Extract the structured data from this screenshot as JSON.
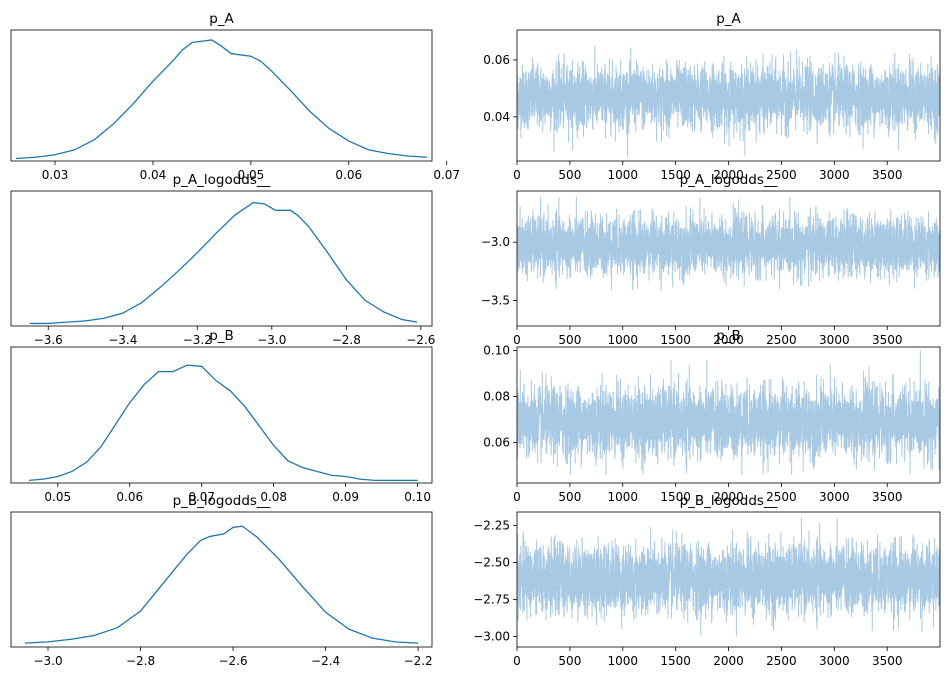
{
  "colors": {
    "kde_line": "#1f77b4",
    "trace_line": "#a8c9e3",
    "axes": "#000000",
    "background": "#ffffff"
  },
  "chart_data": [
    {
      "type": "line",
      "id": "kde-p_A",
      "title": "p_A",
      "xlim": [
        0.0255,
        0.0685
      ],
      "ylim": [
        0,
        1.05
      ],
      "xticks": [
        0.03,
        0.04,
        0.05,
        0.06,
        0.07
      ],
      "xticklabels": [
        "0.03",
        "0.04",
        "0.05",
        "0.06",
        "0.07"
      ],
      "yticks": [],
      "x": [
        0.026,
        0.028,
        0.03,
        0.032,
        0.034,
        0.036,
        0.038,
        0.04,
        0.042,
        0.043,
        0.044,
        0.046,
        0.047,
        0.048,
        0.05,
        0.051,
        0.052,
        0.054,
        0.056,
        0.058,
        0.06,
        0.062,
        0.064,
        0.066,
        0.068
      ],
      "y": [
        0.02,
        0.03,
        0.05,
        0.09,
        0.17,
        0.3,
        0.46,
        0.64,
        0.8,
        0.89,
        0.95,
        0.97,
        0.92,
        0.86,
        0.84,
        0.8,
        0.73,
        0.57,
        0.4,
        0.26,
        0.16,
        0.09,
        0.06,
        0.04,
        0.03
      ]
    },
    {
      "type": "line",
      "id": "trace-p_A",
      "title": "p_A",
      "xlim": [
        0,
        3999
      ],
      "ylim": [
        0.0245,
        0.0705
      ],
      "xticks": [
        0,
        500,
        1000,
        1500,
        2000,
        2500,
        3000,
        3500
      ],
      "xticklabels": [
        "0",
        "500",
        "1000",
        "1500",
        "2000",
        "2500",
        "3000",
        "3500"
      ],
      "yticks": [
        0.04,
        0.06
      ],
      "yticklabels": [
        "0.04",
        "0.06"
      ],
      "n_draws": 4000,
      "mean": 0.047,
      "sd": 0.0055,
      "min": 0.026,
      "max": 0.068
    },
    {
      "type": "line",
      "id": "kde-p_A_logodds__",
      "title": "p_A_logodds__",
      "xlim": [
        -3.7,
        -2.57
      ],
      "ylim": [
        0,
        1.05
      ],
      "xticks": [
        -3.6,
        -3.4,
        -3.2,
        -3.0,
        -2.8,
        -2.6
      ],
      "xticklabels": [
        "−3.6",
        "−3.4",
        "−3.2",
        "−3.0",
        "−2.8",
        "−2.6"
      ],
      "yticks": [],
      "x": [
        -3.65,
        -3.6,
        -3.55,
        -3.5,
        -3.45,
        -3.4,
        -3.35,
        -3.3,
        -3.25,
        -3.2,
        -3.15,
        -3.1,
        -3.05,
        -3.02,
        -2.99,
        -2.95,
        -2.93,
        -2.9,
        -2.85,
        -2.8,
        -2.75,
        -2.7,
        -2.65,
        -2.61
      ],
      "y": [
        0.02,
        0.02,
        0.03,
        0.04,
        0.06,
        0.1,
        0.18,
        0.3,
        0.43,
        0.57,
        0.72,
        0.86,
        0.96,
        0.95,
        0.9,
        0.9,
        0.86,
        0.77,
        0.57,
        0.36,
        0.2,
        0.11,
        0.05,
        0.03
      ]
    },
    {
      "type": "line",
      "id": "trace-p_A_logodds__",
      "title": "p_A_logodds__",
      "xlim": [
        0,
        3999
      ],
      "ylim": [
        -3.72,
        -2.56
      ],
      "xticks": [
        0,
        500,
        1000,
        1500,
        2000,
        2500,
        3000,
        3500
      ],
      "xticklabels": [
        "0",
        "500",
        "1000",
        "1500",
        "2000",
        "2500",
        "3000",
        "3500"
      ],
      "yticks": [
        -3.5,
        -3.0
      ],
      "yticklabels": [
        "−3.5",
        "−3.0"
      ],
      "n_draws": 4000,
      "mean": -3.03,
      "sd": 0.125,
      "min": -3.65,
      "max": -2.61
    },
    {
      "type": "line",
      "id": "kde-p_B",
      "title": "p_B",
      "xlim": [
        0.0435,
        0.102
      ],
      "ylim": [
        0,
        1.05
      ],
      "xticks": [
        0.05,
        0.06,
        0.07,
        0.08,
        0.09,
        0.1
      ],
      "xticklabels": [
        "0.05",
        "0.06",
        "0.07",
        "0.08",
        "0.09",
        "0.10"
      ],
      "yticks": [],
      "x": [
        0.046,
        0.048,
        0.05,
        0.052,
        0.054,
        0.056,
        0.058,
        0.06,
        0.062,
        0.064,
        0.066,
        0.068,
        0.07,
        0.072,
        0.074,
        0.076,
        0.078,
        0.08,
        0.082,
        0.084,
        0.086,
        0.088,
        0.09,
        0.092,
        0.094,
        0.096,
        0.098,
        0.1
      ],
      "y": [
        0.02,
        0.03,
        0.05,
        0.09,
        0.16,
        0.28,
        0.45,
        0.62,
        0.76,
        0.86,
        0.86,
        0.91,
        0.9,
        0.79,
        0.71,
        0.59,
        0.44,
        0.29,
        0.17,
        0.12,
        0.09,
        0.06,
        0.05,
        0.03,
        0.02,
        0.02,
        0.02,
        0.02
      ]
    },
    {
      "type": "line",
      "id": "trace-p_B",
      "title": "p_B",
      "xlim": [
        0,
        3999
      ],
      "ylim": [
        0.0425,
        0.1015
      ],
      "xticks": [
        0,
        500,
        1000,
        1500,
        2000,
        2500,
        3000,
        3500
      ],
      "xticklabels": [
        "0",
        "500",
        "1000",
        "1500",
        "2000",
        "2500",
        "3000",
        "3500"
      ],
      "yticks": [
        0.06,
        0.08,
        0.1
      ],
      "yticklabels": [
        "0.06",
        "0.08",
        "0.10"
      ],
      "n_draws": 4000,
      "mean": 0.069,
      "sd": 0.0075,
      "min": 0.046,
      "max": 0.1
    },
    {
      "type": "line",
      "id": "kde-p_B_logodds__",
      "title": "p_B_logodds__",
      "xlim": [
        -3.08,
        -2.17
      ],
      "ylim": [
        0,
        1.05
      ],
      "xticks": [
        -3.0,
        -2.8,
        -2.6,
        -2.4,
        -2.2
      ],
      "xticklabels": [
        "−3.0",
        "−2.8",
        "−2.6",
        "−2.4",
        "−2.2"
      ],
      "yticks": [],
      "x": [
        -3.05,
        -3.0,
        -2.95,
        -2.9,
        -2.85,
        -2.8,
        -2.75,
        -2.7,
        -2.67,
        -2.65,
        -2.62,
        -2.6,
        -2.58,
        -2.55,
        -2.5,
        -2.45,
        -2.4,
        -2.35,
        -2.3,
        -2.25,
        -2.2
      ],
      "y": [
        0.03,
        0.04,
        0.06,
        0.09,
        0.15,
        0.28,
        0.5,
        0.72,
        0.83,
        0.86,
        0.88,
        0.93,
        0.94,
        0.86,
        0.68,
        0.47,
        0.27,
        0.14,
        0.07,
        0.04,
        0.03
      ]
    },
    {
      "type": "line",
      "id": "trace-p_B_logodds__",
      "title": "p_B_logodds__",
      "xlim": [
        0,
        3999
      ],
      "ylim": [
        -3.07,
        -2.16
      ],
      "xticks": [
        0,
        500,
        1000,
        1500,
        2000,
        2500,
        3000,
        3500
      ],
      "xticklabels": [
        "0",
        "500",
        "1000",
        "1500",
        "2000",
        "2500",
        "3000",
        "3500"
      ],
      "yticks": [
        -3.0,
        -2.75,
        -2.5,
        -2.25
      ],
      "yticklabels": [
        "−3.00",
        "−2.75",
        "−2.50",
        "−2.25"
      ],
      "n_draws": 4000,
      "mean": -2.61,
      "sd": 0.115,
      "min": -3.05,
      "max": -2.2
    }
  ]
}
